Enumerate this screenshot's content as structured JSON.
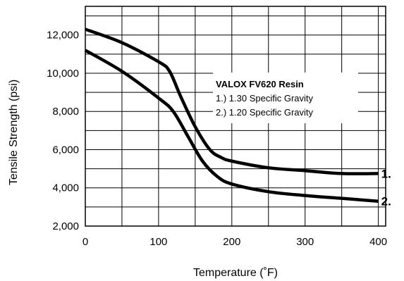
{
  "chart_data": {
    "type": "line",
    "xlabel": "Temperature (˚F)",
    "ylabel": "Tensile Strength (psi)",
    "xlim": [
      0,
      410
    ],
    "ylim": [
      2000,
      13500
    ],
    "x_ticks": [
      0,
      100,
      200,
      300,
      400
    ],
    "x_tick_labels": [
      "0",
      "100",
      "200",
      "300",
      "400"
    ],
    "y_ticks": [
      2000,
      4000,
      6000,
      8000,
      10000,
      12000
    ],
    "y_tick_labels": [
      "2,000",
      "4,000",
      "6,000",
      "8,000",
      "10,000",
      "12,000"
    ],
    "grid": true,
    "legend": {
      "title": "VALOX FV620 Resin",
      "entries": [
        "1.) 1.30 Specific Gravity",
        "2.) 1.20 Specific Gravity"
      ],
      "placement": "center-right"
    },
    "series": [
      {
        "label": "1.",
        "x": [
          0,
          50,
          100,
          115,
          130,
          150,
          170,
          185,
          200,
          250,
          300,
          350,
          400
        ],
        "y": [
          12300,
          11600,
          10600,
          10100,
          8800,
          7200,
          6000,
          5600,
          5400,
          5050,
          4900,
          4750,
          4750
        ]
      },
      {
        "label": "2.",
        "x": [
          0,
          50,
          100,
          120,
          140,
          160,
          180,
          200,
          250,
          300,
          350,
          400
        ],
        "y": [
          11200,
          10100,
          8700,
          8000,
          6700,
          5400,
          4600,
          4200,
          3800,
          3600,
          3450,
          3300
        ]
      }
    ],
    "colors": {
      "line": "#000000",
      "grid": "#000000",
      "background": "#ffffff"
    }
  }
}
